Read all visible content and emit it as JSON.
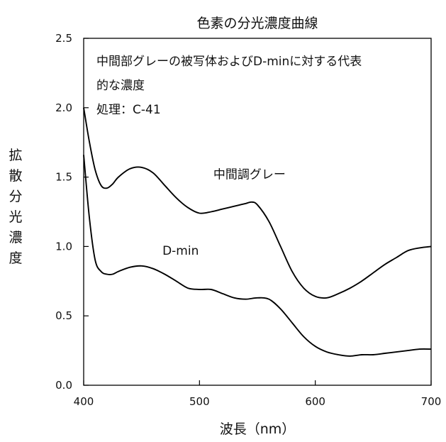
{
  "chart_data": {
    "type": "line",
    "title": "色素の分光濃度曲線",
    "xlabel": "波長（nm）",
    "ylabel": "拡散分光濃度",
    "xlim": [
      400,
      700
    ],
    "ylim": [
      0,
      2.5
    ],
    "xticks": [
      "400",
      "500",
      "600",
      "700"
    ],
    "yticks": [
      "0.0",
      "0.5",
      "1.0",
      "1.5",
      "2.0",
      "2.5"
    ],
    "annotation_lines": [
      "中間部グレーの被写体およびD-minに対する代表",
      "的な濃度",
      "処理：C-41"
    ],
    "series": [
      {
        "name": "中間調グレー",
        "x": [
          400,
          405,
          410,
          415,
          420,
          425,
          430,
          440,
          450,
          460,
          470,
          480,
          490,
          500,
          510,
          520,
          530,
          540,
          545,
          550,
          560,
          570,
          580,
          590,
          600,
          610,
          620,
          630,
          640,
          650,
          660,
          670,
          680,
          690,
          700
        ],
        "y": [
          2.0,
          1.75,
          1.55,
          1.44,
          1.42,
          1.45,
          1.5,
          1.56,
          1.57,
          1.53,
          1.44,
          1.35,
          1.28,
          1.24,
          1.25,
          1.27,
          1.29,
          1.31,
          1.32,
          1.3,
          1.18,
          1.0,
          0.82,
          0.7,
          0.64,
          0.63,
          0.66,
          0.7,
          0.75,
          0.81,
          0.87,
          0.92,
          0.97,
          0.99,
          1.0
        ]
      },
      {
        "name": "D-min",
        "x": [
          400,
          405,
          410,
          415,
          420,
          425,
          430,
          440,
          450,
          460,
          470,
          480,
          490,
          500,
          510,
          520,
          530,
          540,
          550,
          560,
          570,
          580,
          590,
          600,
          610,
          620,
          630,
          640,
          650,
          660,
          670,
          680,
          690,
          700
        ],
        "y": [
          1.66,
          1.2,
          0.9,
          0.82,
          0.8,
          0.8,
          0.82,
          0.85,
          0.86,
          0.84,
          0.8,
          0.75,
          0.7,
          0.69,
          0.69,
          0.66,
          0.63,
          0.62,
          0.63,
          0.62,
          0.55,
          0.45,
          0.35,
          0.28,
          0.24,
          0.22,
          0.21,
          0.22,
          0.22,
          0.23,
          0.24,
          0.25,
          0.26,
          0.26
        ]
      }
    ],
    "series_label_positions": [
      {
        "x": 512,
        "y": 1.49
      },
      {
        "x": 468,
        "y": 0.94
      }
    ]
  }
}
